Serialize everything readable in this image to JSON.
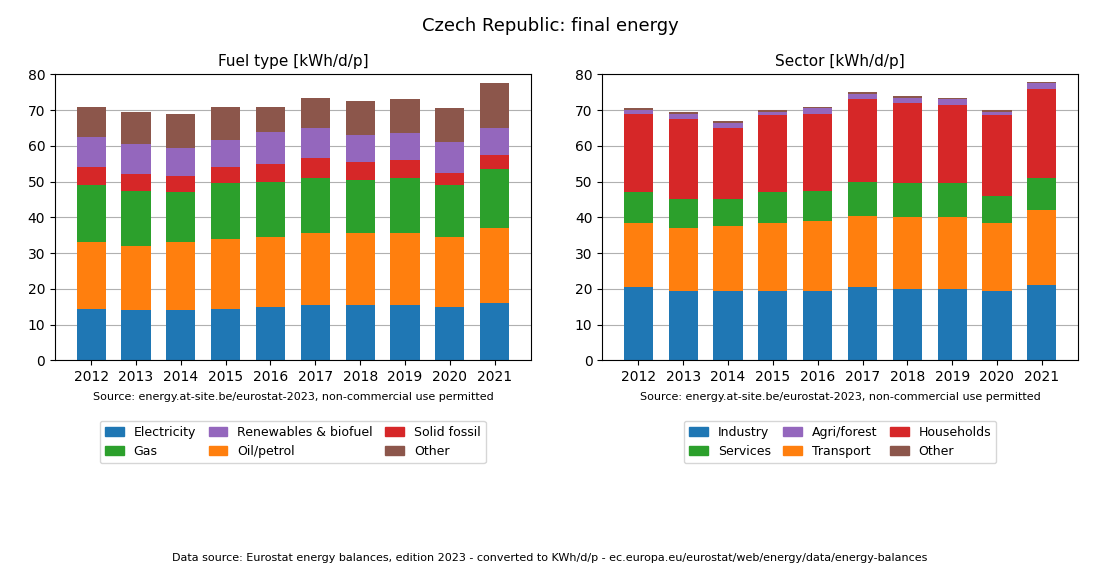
{
  "title": "Czech Republic: final energy",
  "annotations": [
    "Data source: Eurostat energy balances, edition 2023 - converted to KWh/d/p - ec.europa.eu/eurostat/web/energy/data/energy-balances"
  ],
  "chart_data": [
    {
      "type": "bar",
      "stacked": true,
      "title": "Fuel type [kWh/d/p]",
      "categories": [
        "2012",
        "2013",
        "2014",
        "2015",
        "2016",
        "2017",
        "2018",
        "2019",
        "2020",
        "2021"
      ],
      "series": [
        {
          "name": "Electricity",
          "color": "#1f77b4",
          "values": [
            14.5,
            14.0,
            14.0,
            14.5,
            15.0,
            15.5,
            15.5,
            15.5,
            15.0,
            16.0
          ]
        },
        {
          "name": "Oil/petrol",
          "color": "#ff7f0e",
          "values": [
            18.5,
            18.0,
            19.0,
            19.5,
            19.5,
            20.0,
            20.0,
            20.0,
            19.5,
            21.0
          ]
        },
        {
          "name": "Gas",
          "color": "#2ca02c",
          "values": [
            16.0,
            15.5,
            14.0,
            15.5,
            15.5,
            15.5,
            15.0,
            15.5,
            14.5,
            16.5
          ]
        },
        {
          "name": "Solid fossil",
          "color": "#d62728",
          "values": [
            5.0,
            4.5,
            4.5,
            4.5,
            5.0,
            5.5,
            5.0,
            5.0,
            3.5,
            4.0
          ]
        },
        {
          "name": "Renewables & biofuel",
          "color": "#9467bd",
          "values": [
            8.5,
            8.5,
            8.0,
            7.5,
            9.0,
            8.5,
            7.5,
            7.5,
            8.5,
            7.5
          ]
        },
        {
          "name": "Other",
          "color": "#8c564b",
          "values": [
            8.5,
            9.0,
            9.5,
            9.5,
            7.0,
            8.5,
            9.5,
            9.5,
            9.5,
            12.5
          ]
        }
      ],
      "legend_entries": [
        "Electricity",
        "Gas",
        "Renewables & biofuel",
        "Oil/petrol",
        "Solid fossil",
        "Other"
      ],
      "annotations": [
        "Source: energy.at-site.be/eurostat-2023, non-commercial use permitted"
      ],
      "ylim": [
        0,
        80
      ],
      "yticks": [
        0,
        10,
        20,
        30,
        40,
        50,
        60,
        70,
        80
      ],
      "grid": true
    },
    {
      "type": "bar",
      "stacked": true,
      "title": "Sector [kWh/d/p]",
      "categories": [
        "2012",
        "2013",
        "2014",
        "2015",
        "2016",
        "2017",
        "2018",
        "2019",
        "2020",
        "2021"
      ],
      "series": [
        {
          "name": "Industry",
          "color": "#1f77b4",
          "values": [
            20.5,
            19.5,
            19.5,
            19.5,
            19.5,
            20.5,
            20.0,
            20.0,
            19.5,
            21.0
          ]
        },
        {
          "name": "Transport",
          "color": "#ff7f0e",
          "values": [
            18.0,
            17.5,
            18.0,
            19.0,
            19.5,
            20.0,
            20.0,
            20.0,
            19.0,
            21.0
          ]
        },
        {
          "name": "Services",
          "color": "#2ca02c",
          "values": [
            8.5,
            8.0,
            7.5,
            8.5,
            8.5,
            9.5,
            9.5,
            9.5,
            7.5,
            9.0
          ]
        },
        {
          "name": "Households",
          "color": "#d62728",
          "values": [
            22.0,
            22.5,
            20.0,
            21.5,
            21.5,
            23.0,
            22.5,
            22.0,
            22.5,
            25.0
          ]
        },
        {
          "name": "Agri/forest",
          "color": "#9467bd",
          "values": [
            1.0,
            1.5,
            1.5,
            1.0,
            1.5,
            1.5,
            1.5,
            1.5,
            1.0,
            1.5
          ]
        },
        {
          "name": "Other",
          "color": "#8c564b",
          "values": [
            0.5,
            0.5,
            0.5,
            0.5,
            0.5,
            0.5,
            0.5,
            0.5,
            0.5,
            0.5
          ]
        }
      ],
      "legend_entries": [
        "Industry",
        "Services",
        "Agri/forest",
        "Transport",
        "Households",
        "Other"
      ],
      "annotations": [
        "Source: energy.at-site.be/eurostat-2023, non-commercial use permitted"
      ],
      "ylim": [
        0,
        80
      ],
      "yticks": [
        0,
        10,
        20,
        30,
        40,
        50,
        60,
        70,
        80
      ],
      "grid": true
    }
  ]
}
